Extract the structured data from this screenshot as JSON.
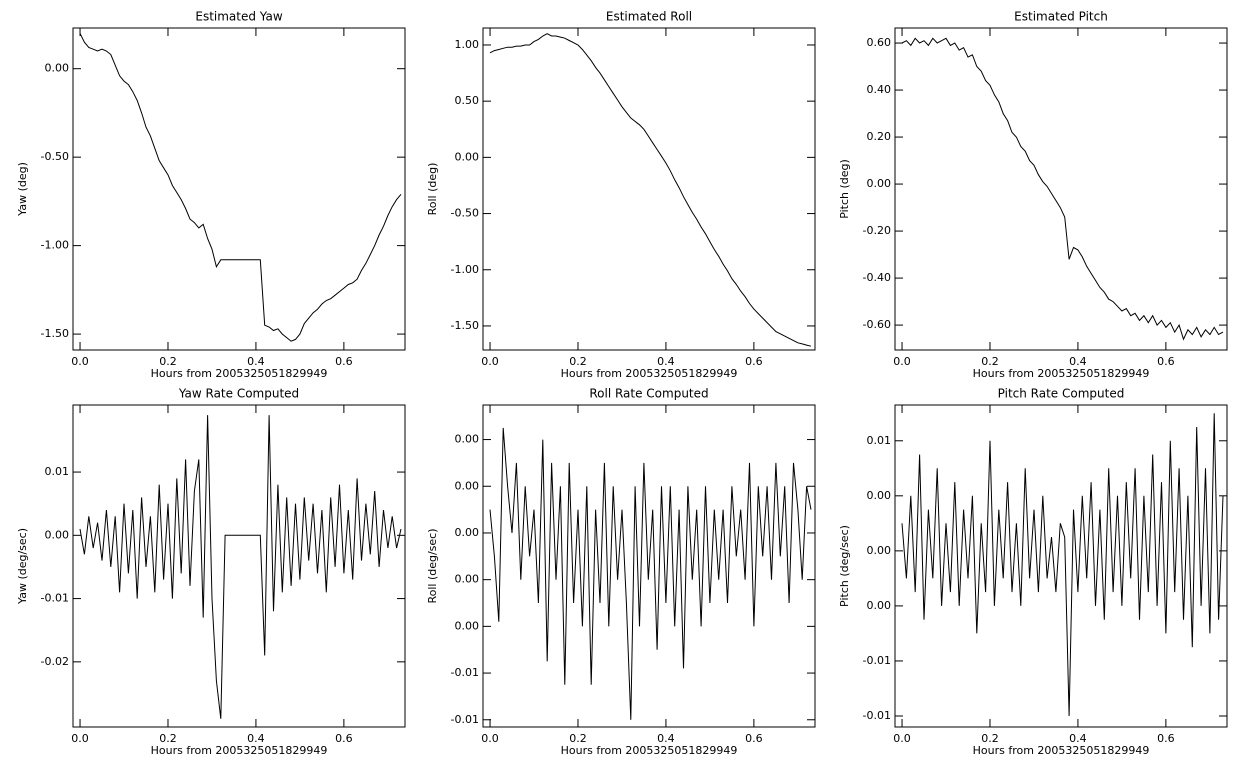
{
  "chart_data": [
    {
      "type": "line",
      "title": "Estimated Yaw",
      "xlabel": "Hours from 2005325051829949",
      "ylabel": "Yaw (deg)",
      "color": "#000000",
      "xlim": [
        -0.016,
        0.739
      ],
      "ylim": [
        -1.59,
        0.23
      ],
      "xticks": [
        {
          "value": 0,
          "label": "0.0"
        },
        0.2,
        0.4,
        0.6
      ],
      "yticks": [
        {
          "value": 0,
          "label": "0.00"
        },
        {
          "value": -0.5,
          "label": "-0.50"
        },
        {
          "value": -1,
          "label": "-1.00"
        },
        {
          "value": -1.5,
          "label": "-1.50"
        }
      ],
      "x": [
        0,
        0.01,
        0.02,
        0.03,
        0.04,
        0.05,
        0.06,
        0.07,
        0.08,
        0.09,
        0.1,
        0.11,
        0.12,
        0.13,
        0.14,
        0.15,
        0.16,
        0.17,
        0.18,
        0.19,
        0.2,
        0.21,
        0.22,
        0.23,
        0.24,
        0.25,
        0.26,
        0.27,
        0.28,
        0.29,
        0.3,
        0.31,
        0.32,
        0.33,
        0.34,
        0.35,
        0.36,
        0.37,
        0.38,
        0.39,
        0.4,
        0.41,
        0.42,
        0.43,
        0.44,
        0.45,
        0.46,
        0.47,
        0.48,
        0.49,
        0.5,
        0.51,
        0.52,
        0.53,
        0.54,
        0.55,
        0.56,
        0.57,
        0.58,
        0.59,
        0.6,
        0.61,
        0.62,
        0.63,
        0.64,
        0.65,
        0.66,
        0.67,
        0.68,
        0.69,
        0.7,
        0.71,
        0.72,
        0.73
      ],
      "values": [
        0.2,
        0.15,
        0.12,
        0.11,
        0.1,
        0.11,
        0.1,
        0.08,
        0.02,
        -0.04,
        -0.07,
        -0.09,
        -0.13,
        -0.18,
        -0.25,
        -0.33,
        -0.38,
        -0.45,
        -0.52,
        -0.56,
        -0.6,
        -0.66,
        -0.7,
        -0.74,
        -0.79,
        -0.85,
        -0.87,
        -0.9,
        -0.88,
        -0.96,
        -1.02,
        -1.12,
        -1.08,
        -1.08,
        -1.08,
        -1.08,
        -1.08,
        -1.08,
        -1.08,
        -1.08,
        -1.08,
        -1.08,
        -1.45,
        -1.46,
        -1.48,
        -1.47,
        -1.5,
        -1.52,
        -1.54,
        -1.53,
        -1.5,
        -1.44,
        -1.41,
        -1.38,
        -1.36,
        -1.33,
        -1.31,
        -1.3,
        -1.28,
        -1.26,
        -1.24,
        -1.22,
        -1.21,
        -1.19,
        -1.14,
        -1.1,
        -1.05,
        -1.0,
        -0.94,
        -0.89,
        -0.83,
        -0.78,
        -0.74,
        -0.71
      ]
    },
    {
      "type": "line",
      "title": "Estimated Roll",
      "xlabel": "Hours from 2005325051829949",
      "ylabel": "Roll (deg)",
      "color": "#000000",
      "xlim": [
        -0.016,
        0.739
      ],
      "ylim": [
        -1.714,
        1.151
      ],
      "xticks": [
        {
          "value": 0,
          "label": "0.0"
        },
        0.2,
        0.4,
        0.6
      ],
      "yticks": [
        {
          "value": 1,
          "label": "1.00"
        },
        {
          "value": 0.5,
          "label": "0.50"
        },
        {
          "value": 0,
          "label": "0.00"
        },
        {
          "value": -0.5,
          "label": "-0.50"
        },
        {
          "value": -1,
          "label": "-1.00"
        },
        {
          "value": -1.5,
          "label": "-1.50"
        }
      ],
      "x": [
        0,
        0.01,
        0.02,
        0.03,
        0.04,
        0.05,
        0.06,
        0.07,
        0.08,
        0.09,
        0.1,
        0.11,
        0.12,
        0.13,
        0.14,
        0.15,
        0.16,
        0.17,
        0.18,
        0.19,
        0.2,
        0.21,
        0.22,
        0.23,
        0.24,
        0.25,
        0.26,
        0.27,
        0.28,
        0.29,
        0.3,
        0.31,
        0.32,
        0.33,
        0.34,
        0.35,
        0.36,
        0.37,
        0.38,
        0.39,
        0.4,
        0.41,
        0.42,
        0.43,
        0.44,
        0.45,
        0.46,
        0.47,
        0.48,
        0.49,
        0.5,
        0.51,
        0.52,
        0.53,
        0.54,
        0.55,
        0.56,
        0.57,
        0.58,
        0.59,
        0.6,
        0.61,
        0.62,
        0.63,
        0.64,
        0.65,
        0.66,
        0.67,
        0.68,
        0.69,
        0.7,
        0.71,
        0.72,
        0.73
      ],
      "values": [
        0.93,
        0.95,
        0.96,
        0.97,
        0.98,
        0.98,
        0.99,
        0.99,
        1.0,
        1.0,
        1.03,
        1.05,
        1.08,
        1.1,
        1.08,
        1.08,
        1.07,
        1.06,
        1.04,
        1.02,
        1.0,
        0.96,
        0.91,
        0.86,
        0.8,
        0.75,
        0.69,
        0.63,
        0.57,
        0.51,
        0.45,
        0.4,
        0.35,
        0.32,
        0.29,
        0.25,
        0.19,
        0.13,
        0.07,
        0.01,
        -0.05,
        -0.12,
        -0.2,
        -0.27,
        -0.35,
        -0.42,
        -0.49,
        -0.55,
        -0.62,
        -0.68,
        -0.75,
        -0.82,
        -0.88,
        -0.95,
        -1.01,
        -1.08,
        -1.13,
        -1.19,
        -1.24,
        -1.3,
        -1.35,
        -1.39,
        -1.43,
        -1.47,
        -1.51,
        -1.55,
        -1.57,
        -1.59,
        -1.61,
        -1.63,
        -1.65,
        -1.66,
        -1.67,
        -1.68
      ]
    },
    {
      "type": "line",
      "title": "Estimated Pitch",
      "xlabel": "Hours from 2005325051829949",
      "ylabel": "Pitch (deg)",
      "color": "#000000",
      "xlim": [
        -0.016,
        0.739
      ],
      "ylim": [
        -0.706,
        0.664
      ],
      "xticks": [
        {
          "value": 0,
          "label": "0.0"
        },
        0.2,
        0.4,
        0.6
      ],
      "yticks": [
        {
          "value": 0.6,
          "label": "0.60"
        },
        {
          "value": 0.4,
          "label": "0.40"
        },
        {
          "value": 0.2,
          "label": "0.20"
        },
        {
          "value": 0,
          "label": "0.00"
        },
        {
          "value": -0.2,
          "label": "-0.20"
        },
        {
          "value": -0.4,
          "label": "-0.40"
        },
        {
          "value": -0.6,
          "label": "-0.60"
        }
      ],
      "x": [
        0,
        0.01,
        0.02,
        0.03,
        0.04,
        0.05,
        0.06,
        0.07,
        0.08,
        0.09,
        0.1,
        0.11,
        0.12,
        0.13,
        0.14,
        0.15,
        0.16,
        0.17,
        0.18,
        0.19,
        0.2,
        0.21,
        0.22,
        0.23,
        0.24,
        0.25,
        0.26,
        0.27,
        0.28,
        0.29,
        0.3,
        0.31,
        0.32,
        0.33,
        0.34,
        0.35,
        0.36,
        0.37,
        0.38,
        0.39,
        0.4,
        0.41,
        0.42,
        0.43,
        0.44,
        0.45,
        0.46,
        0.47,
        0.48,
        0.49,
        0.5,
        0.51,
        0.52,
        0.53,
        0.54,
        0.55,
        0.56,
        0.57,
        0.58,
        0.59,
        0.6,
        0.61,
        0.62,
        0.63,
        0.64,
        0.65,
        0.66,
        0.67,
        0.68,
        0.69,
        0.7,
        0.71,
        0.72,
        0.73
      ],
      "values": [
        0.6,
        0.61,
        0.59,
        0.62,
        0.6,
        0.61,
        0.59,
        0.62,
        0.6,
        0.61,
        0.62,
        0.59,
        0.6,
        0.57,
        0.58,
        0.54,
        0.55,
        0.5,
        0.48,
        0.44,
        0.42,
        0.38,
        0.35,
        0.3,
        0.27,
        0.22,
        0.2,
        0.16,
        0.14,
        0.1,
        0.08,
        0.04,
        0.01,
        -0.01,
        -0.04,
        -0.07,
        -0.1,
        -0.14,
        -0.32,
        -0.27,
        -0.28,
        -0.31,
        -0.35,
        -0.38,
        -0.41,
        -0.44,
        -0.46,
        -0.49,
        -0.5,
        -0.52,
        -0.54,
        -0.53,
        -0.56,
        -0.55,
        -0.58,
        -0.56,
        -0.59,
        -0.56,
        -0.6,
        -0.58,
        -0.61,
        -0.59,
        -0.63,
        -0.6,
        -0.66,
        -0.62,
        -0.64,
        -0.61,
        -0.65,
        -0.62,
        -0.64,
        -0.61,
        -0.64,
        -0.63
      ]
    },
    {
      "type": "line",
      "title": "Yaw Rate Computed",
      "xlabel": "Hours from 2005325051829949",
      "ylabel": "Yaw (deg/sec)",
      "color": "#000000",
      "xlim": [
        -0.016,
        0.739
      ],
      "ylim": [
        -0.0303,
        0.0206
      ],
      "xticks": [
        {
          "value": 0,
          "label": "0.0"
        },
        0.2,
        0.4,
        0.6
      ],
      "yticks": [
        0.01,
        {
          "value": 0,
          "label": "0.00"
        },
        -0.01,
        -0.02
      ],
      "x": [
        0,
        0.01,
        0.02,
        0.03,
        0.04,
        0.05,
        0.06,
        0.07,
        0.08,
        0.09,
        0.1,
        0.11,
        0.12,
        0.13,
        0.14,
        0.15,
        0.16,
        0.17,
        0.18,
        0.19,
        0.2,
        0.21,
        0.22,
        0.23,
        0.24,
        0.25,
        0.26,
        0.27,
        0.28,
        0.29,
        0.3,
        0.31,
        0.32,
        0.33,
        0.34,
        0.35,
        0.36,
        0.37,
        0.38,
        0.39,
        0.4,
        0.41,
        0.42,
        0.43,
        0.44,
        0.45,
        0.46,
        0.47,
        0.48,
        0.49,
        0.5,
        0.51,
        0.52,
        0.53,
        0.54,
        0.55,
        0.56,
        0.57,
        0.58,
        0.59,
        0.6,
        0.61,
        0.62,
        0.63,
        0.64,
        0.65,
        0.66,
        0.67,
        0.68,
        0.69,
        0.7,
        0.71,
        0.72,
        0.73
      ],
      "values": [
        0.001,
        -0.003,
        0.003,
        -0.002,
        0.002,
        -0.004,
        0.004,
        -0.005,
        0.003,
        -0.009,
        0.005,
        -0.006,
        0.004,
        -0.01,
        0.006,
        -0.005,
        0.003,
        -0.009,
        0.008,
        -0.007,
        0.005,
        -0.01,
        0.009,
        -0.006,
        0.012,
        -0.008,
        0.007,
        0.012,
        -0.013,
        0.019,
        -0.01,
        -0.023,
        -0.029,
        0,
        0,
        0,
        0,
        0,
        0,
        0,
        0,
        0,
        -0.019,
        0.019,
        -0.012,
        0.008,
        -0.009,
        0.006,
        -0.008,
        0.005,
        -0.007,
        0.006,
        -0.004,
        0.005,
        -0.006,
        0.004,
        -0.009,
        0.006,
        -0.005,
        0.008,
        -0.006,
        0.004,
        -0.007,
        0.009,
        -0.004,
        0.005,
        -0.003,
        0.007,
        -0.005,
        0.004,
        -0.002,
        0.003,
        -0.002,
        0.001
      ]
    },
    {
      "type": "line",
      "title": "Roll Rate Computed",
      "xlabel": "Hours from 2005325051829949",
      "ylabel": "Roll (deg/sec)",
      "color": "#000000",
      "xlim": [
        -0.016,
        0.739
      ],
      "ylim": [
        -0.00831,
        0.00548
      ],
      "xticks": [
        {
          "value": 0,
          "label": "0.0"
        },
        0.2,
        0.4,
        0.6
      ],
      "yticks": [
        {
          "value": 0.004,
          "label": "0.00"
        },
        {
          "value": 0.002,
          "label": "0.00"
        },
        {
          "value": 0,
          "label": "0.00"
        },
        {
          "value": -0.002,
          "label": "0.00"
        },
        {
          "value": -0.004,
          "label": "0.00"
        },
        {
          "value": -0.006,
          "label": "-0.01"
        },
        {
          "value": -0.008,
          "label": "-0.01"
        }
      ],
      "x": [
        0,
        0.01,
        0.02,
        0.03,
        0.04,
        0.05,
        0.06,
        0.07,
        0.08,
        0.09,
        0.1,
        0.11,
        0.12,
        0.13,
        0.14,
        0.15,
        0.16,
        0.17,
        0.18,
        0.19,
        0.2,
        0.21,
        0.22,
        0.23,
        0.24,
        0.25,
        0.26,
        0.27,
        0.28,
        0.29,
        0.3,
        0.31,
        0.32,
        0.33,
        0.34,
        0.35,
        0.36,
        0.37,
        0.38,
        0.39,
        0.4,
        0.41,
        0.42,
        0.43,
        0.44,
        0.45,
        0.46,
        0.47,
        0.48,
        0.49,
        0.5,
        0.51,
        0.52,
        0.53,
        0.54,
        0.55,
        0.56,
        0.57,
        0.58,
        0.59,
        0.6,
        0.61,
        0.62,
        0.63,
        0.64,
        0.65,
        0.66,
        0.67,
        0.68,
        0.69,
        0.7,
        0.71,
        0.72,
        0.73
      ],
      "values": [
        0.001,
        -0.001,
        -0.0038,
        0.0045,
        0.002,
        0,
        0.003,
        -0.002,
        0.002,
        -0.001,
        0.001,
        -0.003,
        0.004,
        -0.0055,
        0.003,
        -0.002,
        0.002,
        -0.0065,
        0.003,
        -0.003,
        0.001,
        -0.004,
        0.002,
        -0.0065,
        0.001,
        -0.003,
        0.003,
        -0.004,
        0.002,
        -0.002,
        0.001,
        -0.003,
        -0.008,
        0.002,
        -0.004,
        0.003,
        -0.002,
        0.001,
        -0.005,
        0.002,
        -0.003,
        0.002,
        -0.004,
        0.001,
        -0.0058,
        0.002,
        -0.002,
        0.001,
        -0.004,
        0.002,
        -0.003,
        0.001,
        -0.002,
        0.001,
        -0.003,
        0.002,
        -0.001,
        0.001,
        -0.002,
        0.003,
        -0.004,
        0.002,
        -0.001,
        0.002,
        -0.002,
        0.003,
        -0.001,
        0.002,
        -0.003,
        0.003,
        0.001,
        -0.002,
        0.002,
        0.001
      ]
    },
    {
      "type": "line",
      "title": "Pitch Rate Computed",
      "xlabel": "Hours from 2005325051829949",
      "ylabel": "Pitch (deg/sec)",
      "color": "#000000",
      "xlim": [
        -0.016,
        0.739
      ],
      "ylim": [
        -0.0128,
        0.0106
      ],
      "xticks": [
        {
          "value": 0,
          "label": "0.0"
        },
        0.2,
        0.4,
        0.6
      ],
      "yticks": [
        {
          "value": 0.008,
          "label": "0.01"
        },
        {
          "value": 0.004,
          "label": "0.00"
        },
        {
          "value": 0,
          "label": "0.00"
        },
        {
          "value": -0.004,
          "label": "0.00"
        },
        {
          "value": -0.008,
          "label": "-0.01"
        },
        {
          "value": -0.012,
          "label": "-0.01"
        }
      ],
      "x": [
        0,
        0.01,
        0.02,
        0.03,
        0.04,
        0.05,
        0.06,
        0.07,
        0.08,
        0.09,
        0.1,
        0.11,
        0.12,
        0.13,
        0.14,
        0.15,
        0.16,
        0.17,
        0.18,
        0.19,
        0.2,
        0.21,
        0.22,
        0.23,
        0.24,
        0.25,
        0.26,
        0.27,
        0.28,
        0.29,
        0.3,
        0.31,
        0.32,
        0.33,
        0.34,
        0.35,
        0.36,
        0.37,
        0.38,
        0.39,
        0.4,
        0.41,
        0.42,
        0.43,
        0.44,
        0.45,
        0.46,
        0.47,
        0.48,
        0.49,
        0.5,
        0.51,
        0.52,
        0.53,
        0.54,
        0.55,
        0.56,
        0.57,
        0.58,
        0.59,
        0.6,
        0.61,
        0.62,
        0.63,
        0.64,
        0.65,
        0.66,
        0.67,
        0.68,
        0.69,
        0.7,
        0.71,
        0.72,
        0.73
      ],
      "values": [
        0.002,
        -0.002,
        0.004,
        -0.003,
        0.007,
        -0.005,
        0.003,
        -0.002,
        0.006,
        -0.004,
        0.002,
        -0.003,
        0.005,
        -0.004,
        0.003,
        -0.002,
        0.004,
        -0.006,
        0.002,
        -0.003,
        0.008,
        -0.004,
        0.003,
        -0.002,
        0.005,
        -0.003,
        0.002,
        -0.004,
        0.006,
        -0.002,
        0.003,
        -0.003,
        0.004,
        -0.002,
        0.001,
        -0.003,
        0.002,
        0.001,
        -0.012,
        0.003,
        -0.003,
        0.004,
        -0.002,
        0.005,
        -0.004,
        0.003,
        -0.005,
        0.006,
        -0.003,
        0.004,
        -0.004,
        0.005,
        -0.002,
        0.006,
        -0.005,
        0.004,
        -0.003,
        0.007,
        -0.004,
        0.005,
        -0.006,
        0.008,
        -0.003,
        0.006,
        -0.005,
        0.004,
        -0.007,
        0.009,
        -0.004,
        0.006,
        -0.006,
        0.01,
        -0.005,
        0.004
      ]
    }
  ]
}
